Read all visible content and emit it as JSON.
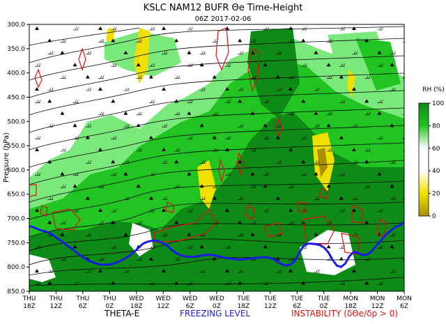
{
  "title": "KSLC NAM12 BUFR Θe Time-Height",
  "subtitle": "06Z 2017-02-06",
  "footer": {
    "theta_label": "THETA-E",
    "freezing_label": "FREEZING LEVEL",
    "instability_label": "INSTABILITY (δΘe/δp > 0)"
  },
  "colors": {
    "freezing_level": "#1a1ae6",
    "instability": "#e01010",
    "rh_dark_green": "#0e8a16",
    "rh_green": "#22c422",
    "rh_light_green": "#7be87b",
    "rh_dry_yellow": "#f0e000",
    "rh_dry_olive": "#a89000"
  },
  "chart_data": {
    "type": "heatmap",
    "title": "KSLC NAM12 BUFR Θe Time-Height",
    "subtitle": "06Z 2017-02-06",
    "xlabel": "",
    "ylabel": "Pressure (hPa)",
    "x_ticks": [
      {
        "day": "THU",
        "hour": "18Z"
      },
      {
        "day": "THU",
        "hour": "12Z"
      },
      {
        "day": "THU",
        "hour": "6Z"
      },
      {
        "day": "THU",
        "hour": "0Z"
      },
      {
        "day": "WED",
        "hour": "18Z"
      },
      {
        "day": "WED",
        "hour": "12Z"
      },
      {
        "day": "WED",
        "hour": "6Z"
      },
      {
        "day": "WED",
        "hour": "0Z"
      },
      {
        "day": "TUE",
        "hour": "18Z"
      },
      {
        "day": "TUE",
        "hour": "12Z"
      },
      {
        "day": "TUE",
        "hour": "6Z"
      },
      {
        "day": "TUE",
        "hour": "0Z"
      },
      {
        "day": "MON",
        "hour": "18Z"
      },
      {
        "day": "MON",
        "hour": "12Z"
      },
      {
        "day": "MON",
        "hour": "6Z"
      }
    ],
    "y_ticks": [
      "300.0",
      "350.0",
      "400.0",
      "450.0",
      "500.0",
      "550.0",
      "600.0",
      "650.0",
      "700.0",
      "750.0",
      "800.0",
      "850.0"
    ],
    "ylim": [
      850,
      300
    ],
    "colorbar": {
      "label": "RH (%)",
      "ticks": [
        "100",
        "80",
        "60",
        "40",
        "20",
        "0"
      ]
    },
    "freezing_level_hPa": [
      716,
      718,
      722,
      725,
      727,
      731,
      737,
      743,
      749,
      756,
      762,
      769,
      775,
      781,
      787,
      790,
      793,
      795,
      795,
      795,
      793,
      790,
      786,
      781,
      775,
      768,
      760,
      752,
      748,
      746,
      745,
      748,
      752,
      758,
      766,
      772,
      776,
      778,
      779,
      779,
      778,
      776,
      775,
      775,
      776,
      778,
      780,
      782,
      783,
      784,
      785,
      784,
      783,
      782,
      781,
      780,
      780,
      781,
      784,
      790,
      795,
      797,
      795,
      788,
      772,
      758,
      752,
      752,
      753,
      755,
      760,
      770,
      785,
      797,
      800,
      793,
      778,
      769,
      771,
      775,
      775,
      770,
      760,
      750,
      740,
      731,
      724,
      717,
      714,
      707
    ]
  }
}
